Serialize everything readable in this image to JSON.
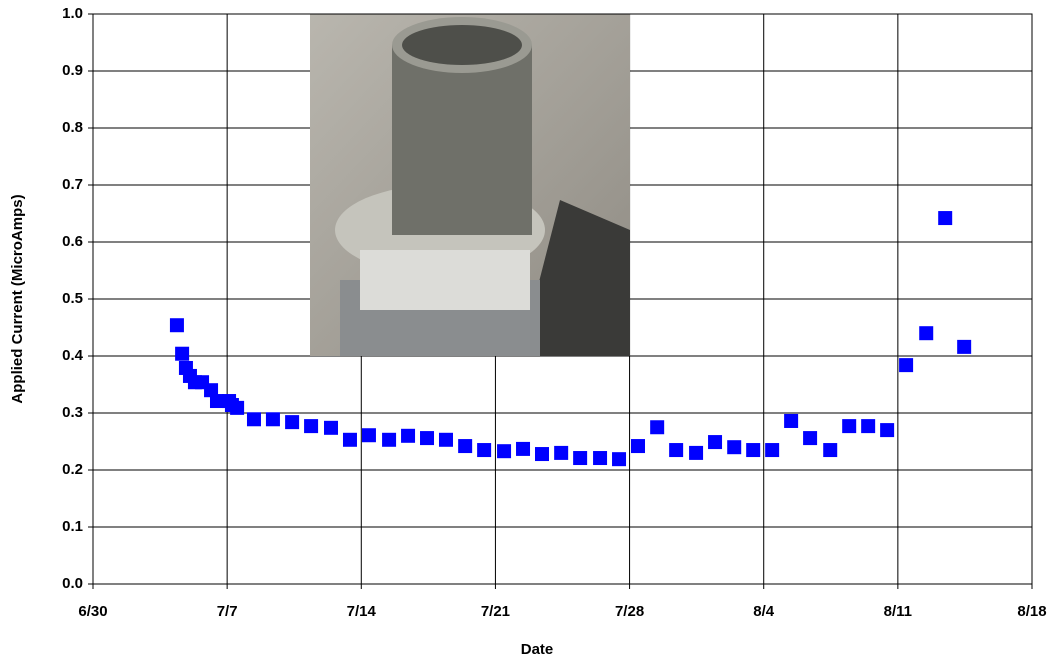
{
  "chart_data": {
    "type": "scatter",
    "x_label": "Date",
    "y_label": "Applied Current (MicroAmps)",
    "color": "#0000ff",
    "grid": true,
    "xlim": [
      0,
      49
    ],
    "xticks": [
      {
        "value": 0,
        "label": "6/30"
      },
      {
        "value": 7,
        "label": "7/7"
      },
      {
        "value": 14,
        "label": "7/14"
      },
      {
        "value": 21,
        "label": "7/21"
      },
      {
        "value": 28,
        "label": "7/28"
      },
      {
        "value": 35,
        "label": "8/4"
      },
      {
        "value": 42,
        "label": "8/11"
      },
      {
        "value": 49,
        "label": "8/18"
      }
    ],
    "ylim": [
      0,
      1
    ],
    "yticks": [
      {
        "value": 0,
        "label": "0.0"
      },
      0.1,
      0.2,
      0.3,
      0.4,
      0.5,
      0.6,
      0.7,
      0.8,
      0.9,
      {
        "value": 1,
        "label": "1.0"
      }
    ],
    "x": [
      4.38,
      4.65,
      4.85,
      5.06,
      5.32,
      5.69,
      6.16,
      6.47,
      7.1,
      7.25,
      7.52,
      8.4,
      9.39,
      10.39,
      11.38,
      12.42,
      13.41,
      14.4,
      15.45,
      16.44,
      17.43,
      18.42,
      19.42,
      20.41,
      21.45,
      22.44,
      23.43,
      24.43,
      25.42,
      26.46,
      27.45,
      28.44,
      29.44,
      30.43,
      31.47,
      32.46,
      33.46,
      34.45,
      35.44,
      36.43,
      37.42,
      38.47,
      39.46,
      40.45,
      41.44,
      42.43,
      43.48,
      44.47,
      45.46
    ],
    "values": [
      0.454,
      0.404,
      0.379,
      0.365,
      0.354,
      0.354,
      0.34,
      0.321,
      0.321,
      0.314,
      0.309,
      0.289,
      0.289,
      0.284,
      0.277,
      0.274,
      0.253,
      0.261,
      0.253,
      0.26,
      0.256,
      0.253,
      0.242,
      0.235,
      0.233,
      0.237,
      0.228,
      0.23,
      0.221,
      0.221,
      0.219,
      0.242,
      0.275,
      0.235,
      0.23,
      0.249,
      0.24,
      0.235,
      0.235,
      0.286,
      0.256,
      0.235,
      0.277,
      0.277,
      0.27,
      0.384,
      0.44,
      0.642,
      0.416
    ]
  }
}
